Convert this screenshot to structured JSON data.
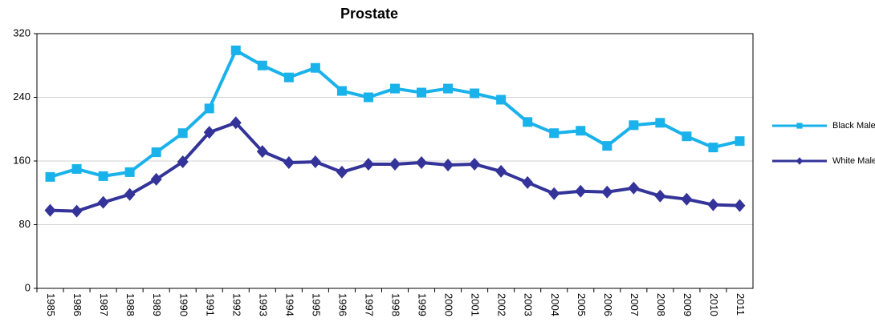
{
  "chart_data": {
    "type": "line",
    "title": "Prostate",
    "categories": [
      "1985",
      "1986",
      "1987",
      "1988",
      "1989",
      "1990",
      "1991",
      "1992",
      "1993",
      "1994",
      "1995",
      "1996",
      "1997",
      "1998",
      "1999",
      "2000",
      "2001",
      "2002",
      "2003",
      "2004",
      "2005",
      "2006",
      "2007",
      "2008",
      "2009",
      "2010",
      "2011"
    ],
    "series": [
      {
        "name": "Black Male",
        "color": "#1ab2ea",
        "marker": "square",
        "values": [
          140,
          150,
          141,
          146,
          171,
          195,
          226,
          299,
          280,
          265,
          277,
          248,
          240,
          251,
          246,
          251,
          245,
          237,
          209,
          195,
          198,
          179,
          205,
          208,
          191,
          177,
          185
        ]
      },
      {
        "name": "White Male",
        "color": "#333399",
        "marker": "diamond",
        "values": [
          98,
          97,
          108,
          118,
          137,
          159,
          196,
          208,
          172,
          158,
          159,
          146,
          156,
          156,
          158,
          155,
          156,
          147,
          133,
          119,
          122,
          121,
          126,
          116,
          112,
          105,
          104
        ]
      }
    ],
    "ylim": [
      0,
      320
    ],
    "yticks": [
      0,
      80,
      160,
      240,
      320
    ],
    "grid": true,
    "legend": "right"
  }
}
